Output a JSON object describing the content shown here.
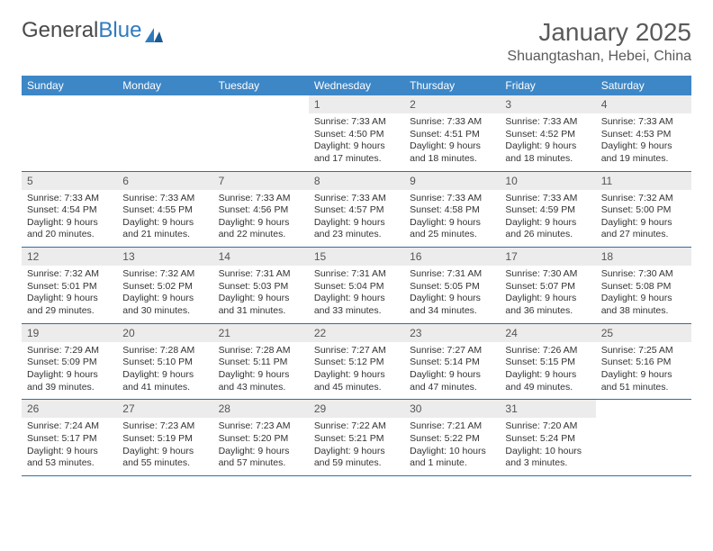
{
  "logo": {
    "text1": "General",
    "text2": "Blue"
  },
  "title": {
    "month": "January 2025",
    "location": "Shuangtashan, Hebei, China"
  },
  "colors": {
    "header_bg": "#3d87c7",
    "header_fg": "#ffffff",
    "daynum_bg": "#ececec",
    "row_border": "#2f6fa8",
    "logo_blue": "#2f7bbf",
    "text": "#333333"
  },
  "weekdays": [
    "Sunday",
    "Monday",
    "Tuesday",
    "Wednesday",
    "Thursday",
    "Friday",
    "Saturday"
  ],
  "weeks": [
    [
      null,
      null,
      null,
      {
        "n": "1",
        "sr": "7:33 AM",
        "ss": "4:50 PM",
        "dl": "9 hours and 17 minutes."
      },
      {
        "n": "2",
        "sr": "7:33 AM",
        "ss": "4:51 PM",
        "dl": "9 hours and 18 minutes."
      },
      {
        "n": "3",
        "sr": "7:33 AM",
        "ss": "4:52 PM",
        "dl": "9 hours and 18 minutes."
      },
      {
        "n": "4",
        "sr": "7:33 AM",
        "ss": "4:53 PM",
        "dl": "9 hours and 19 minutes."
      }
    ],
    [
      {
        "n": "5",
        "sr": "7:33 AM",
        "ss": "4:54 PM",
        "dl": "9 hours and 20 minutes."
      },
      {
        "n": "6",
        "sr": "7:33 AM",
        "ss": "4:55 PM",
        "dl": "9 hours and 21 minutes."
      },
      {
        "n": "7",
        "sr": "7:33 AM",
        "ss": "4:56 PM",
        "dl": "9 hours and 22 minutes."
      },
      {
        "n": "8",
        "sr": "7:33 AM",
        "ss": "4:57 PM",
        "dl": "9 hours and 23 minutes."
      },
      {
        "n": "9",
        "sr": "7:33 AM",
        "ss": "4:58 PM",
        "dl": "9 hours and 25 minutes."
      },
      {
        "n": "10",
        "sr": "7:33 AM",
        "ss": "4:59 PM",
        "dl": "9 hours and 26 minutes."
      },
      {
        "n": "11",
        "sr": "7:32 AM",
        "ss": "5:00 PM",
        "dl": "9 hours and 27 minutes."
      }
    ],
    [
      {
        "n": "12",
        "sr": "7:32 AM",
        "ss": "5:01 PM",
        "dl": "9 hours and 29 minutes."
      },
      {
        "n": "13",
        "sr": "7:32 AM",
        "ss": "5:02 PM",
        "dl": "9 hours and 30 minutes."
      },
      {
        "n": "14",
        "sr": "7:31 AM",
        "ss": "5:03 PM",
        "dl": "9 hours and 31 minutes."
      },
      {
        "n": "15",
        "sr": "7:31 AM",
        "ss": "5:04 PM",
        "dl": "9 hours and 33 minutes."
      },
      {
        "n": "16",
        "sr": "7:31 AM",
        "ss": "5:05 PM",
        "dl": "9 hours and 34 minutes."
      },
      {
        "n": "17",
        "sr": "7:30 AM",
        "ss": "5:07 PM",
        "dl": "9 hours and 36 minutes."
      },
      {
        "n": "18",
        "sr": "7:30 AM",
        "ss": "5:08 PM",
        "dl": "9 hours and 38 minutes."
      }
    ],
    [
      {
        "n": "19",
        "sr": "7:29 AM",
        "ss": "5:09 PM",
        "dl": "9 hours and 39 minutes."
      },
      {
        "n": "20",
        "sr": "7:28 AM",
        "ss": "5:10 PM",
        "dl": "9 hours and 41 minutes."
      },
      {
        "n": "21",
        "sr": "7:28 AM",
        "ss": "5:11 PM",
        "dl": "9 hours and 43 minutes."
      },
      {
        "n": "22",
        "sr": "7:27 AM",
        "ss": "5:12 PM",
        "dl": "9 hours and 45 minutes."
      },
      {
        "n": "23",
        "sr": "7:27 AM",
        "ss": "5:14 PM",
        "dl": "9 hours and 47 minutes."
      },
      {
        "n": "24",
        "sr": "7:26 AM",
        "ss": "5:15 PM",
        "dl": "9 hours and 49 minutes."
      },
      {
        "n": "25",
        "sr": "7:25 AM",
        "ss": "5:16 PM",
        "dl": "9 hours and 51 minutes."
      }
    ],
    [
      {
        "n": "26",
        "sr": "7:24 AM",
        "ss": "5:17 PM",
        "dl": "9 hours and 53 minutes."
      },
      {
        "n": "27",
        "sr": "7:23 AM",
        "ss": "5:19 PM",
        "dl": "9 hours and 55 minutes."
      },
      {
        "n": "28",
        "sr": "7:23 AM",
        "ss": "5:20 PM",
        "dl": "9 hours and 57 minutes."
      },
      {
        "n": "29",
        "sr": "7:22 AM",
        "ss": "5:21 PM",
        "dl": "9 hours and 59 minutes."
      },
      {
        "n": "30",
        "sr": "7:21 AM",
        "ss": "5:22 PM",
        "dl": "10 hours and 1 minute."
      },
      {
        "n": "31",
        "sr": "7:20 AM",
        "ss": "5:24 PM",
        "dl": "10 hours and 3 minutes."
      },
      null
    ]
  ],
  "labels": {
    "sunrise": "Sunrise: ",
    "sunset": "Sunset: ",
    "daylight": "Daylight: "
  }
}
